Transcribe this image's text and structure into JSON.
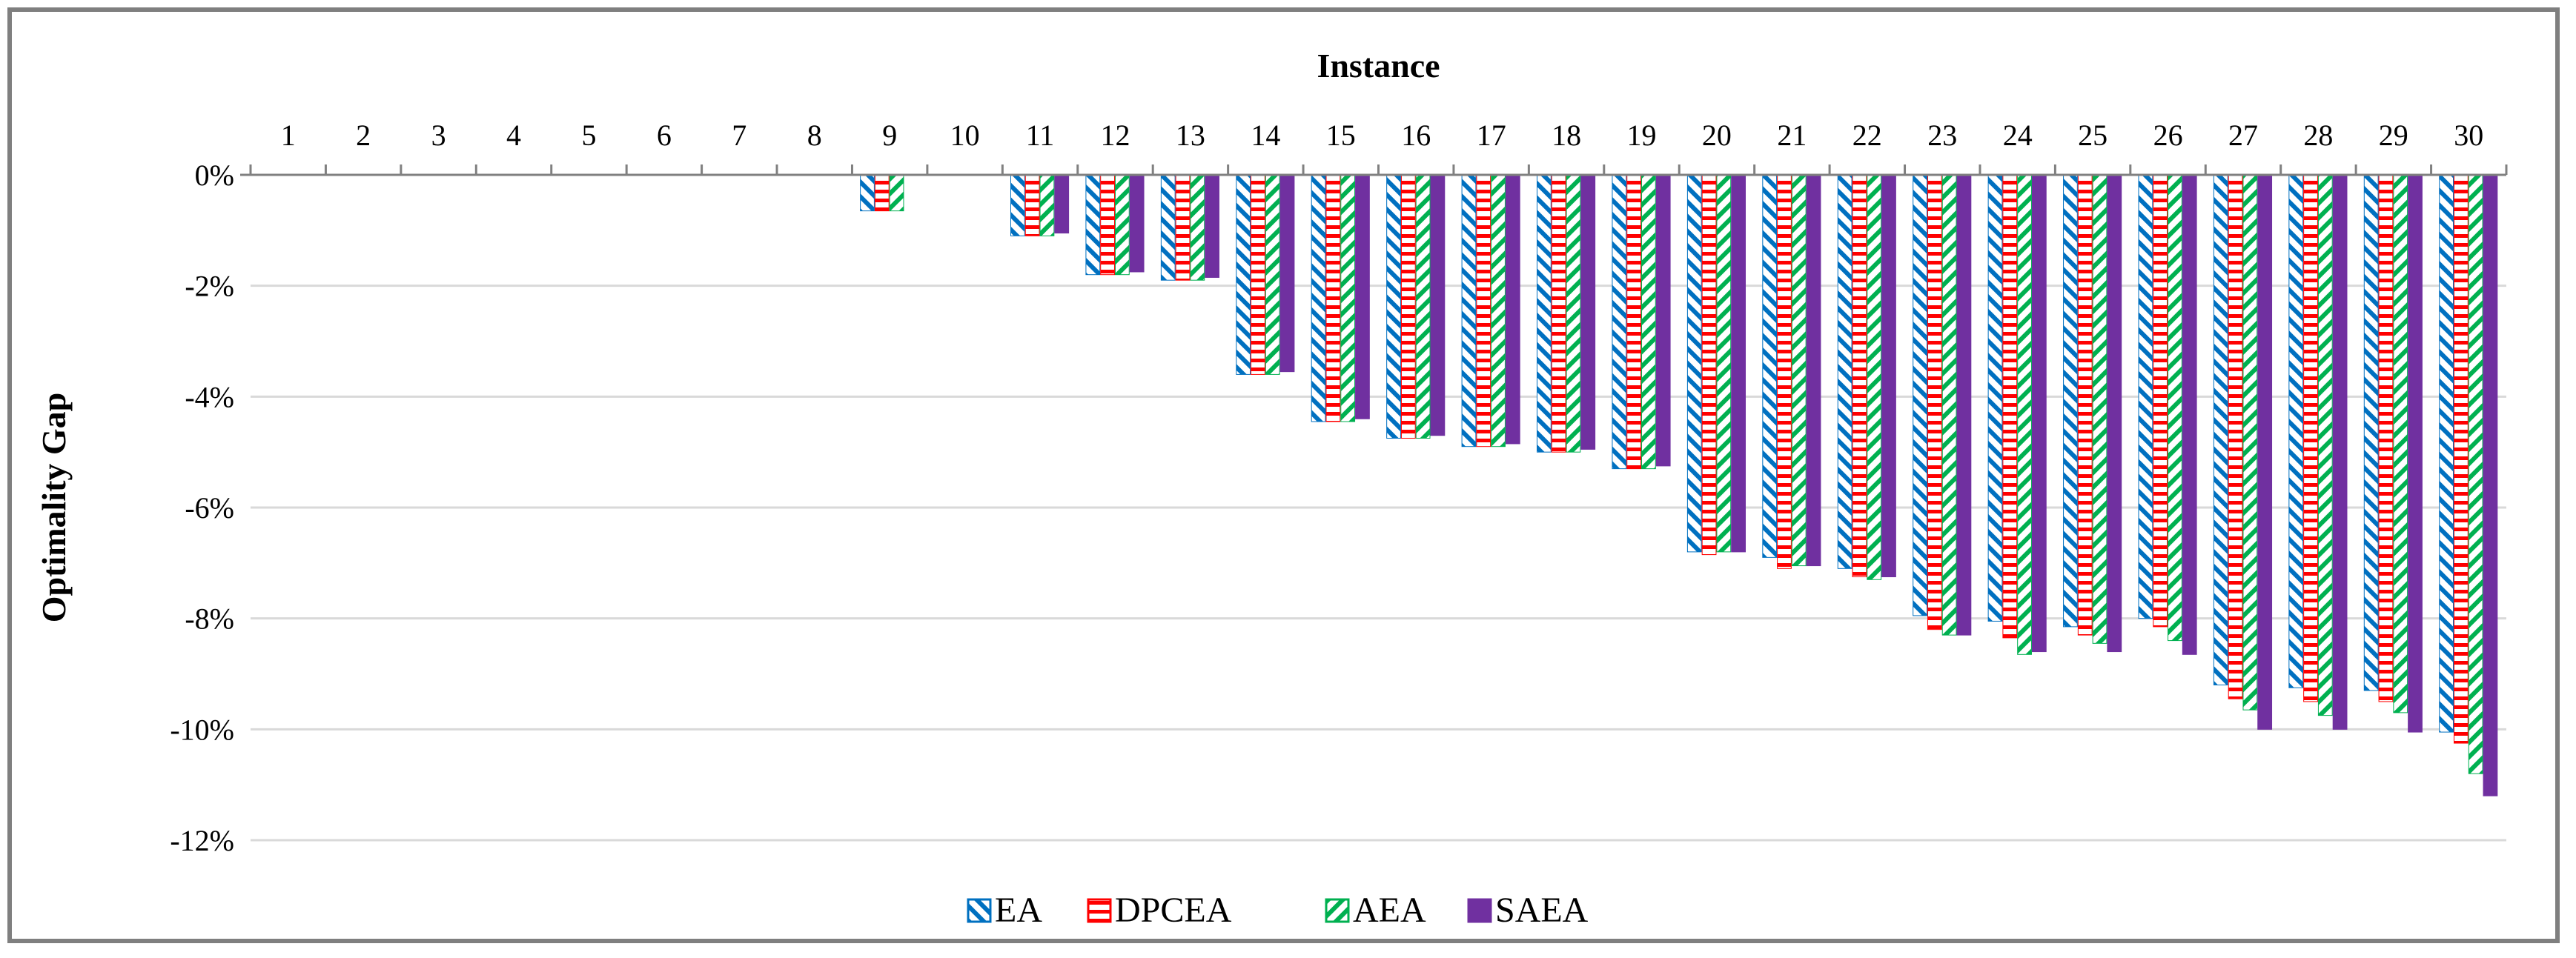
{
  "chart_data": {
    "type": "bar",
    "title": "",
    "xlabel": "Instance",
    "ylabel": "Optimality Gap",
    "x_axis_position": "top",
    "categories": [
      "1",
      "2",
      "3",
      "4",
      "5",
      "6",
      "7",
      "8",
      "9",
      "10",
      "11",
      "12",
      "13",
      "14",
      "15",
      "16",
      "17",
      "18",
      "19",
      "20",
      "21",
      "22",
      "23",
      "24",
      "25",
      "26",
      "27",
      "28",
      "29",
      "30"
    ],
    "ylim": [
      -12,
      0
    ],
    "yticks": [
      0,
      -2,
      -4,
      -6,
      -8,
      -10,
      -12
    ],
    "ytick_labels": [
      "0%",
      "-2%",
      "-4%",
      "-6%",
      "-8%",
      "-10%",
      "-12%"
    ],
    "grid": true,
    "legend_position": "bottom",
    "series": [
      {
        "name": "EA",
        "color": "#0070c0",
        "pattern": "diagonal-hatch",
        "values": [
          0,
          0,
          0,
          0,
          0,
          0,
          0,
          0,
          -0.65,
          0,
          -1.1,
          -1.8,
          -1.9,
          -3.6,
          -4.45,
          -4.75,
          -4.9,
          -5.0,
          -5.3,
          -6.8,
          -6.9,
          -7.1,
          -7.95,
          -8.05,
          -8.15,
          -8.0,
          -9.2,
          -9.25,
          -9.3,
          -10.05
        ]
      },
      {
        "name": "DPCEA",
        "color": "#ff0000",
        "pattern": "horizontal-stripes",
        "values": [
          0,
          0,
          0,
          0,
          0,
          0,
          0,
          0,
          -0.65,
          0,
          -1.1,
          -1.8,
          -1.9,
          -3.6,
          -4.45,
          -4.75,
          -4.9,
          -5.0,
          -5.3,
          -6.85,
          -7.1,
          -7.25,
          -8.2,
          -8.35,
          -8.3,
          -8.15,
          -9.45,
          -9.5,
          -9.5,
          -10.25
        ]
      },
      {
        "name": "AEA",
        "color": "#00b050",
        "pattern": "diagonal-hatch",
        "values": [
          0,
          0,
          0,
          0,
          0,
          0,
          0,
          0,
          -0.65,
          0,
          -1.1,
          -1.8,
          -1.9,
          -3.6,
          -4.45,
          -4.75,
          -4.9,
          -5.0,
          -5.3,
          -6.8,
          -7.05,
          -7.3,
          -8.3,
          -8.65,
          -8.45,
          -8.4,
          -9.65,
          -9.75,
          -9.7,
          -10.8
        ]
      },
      {
        "name": "SAEA",
        "color": "#7030a0",
        "pattern": "solid",
        "values": [
          0,
          0,
          0,
          0,
          0,
          0,
          0,
          0,
          0,
          0,
          -1.05,
          -1.75,
          -1.85,
          -3.55,
          -4.4,
          -4.7,
          -4.85,
          -4.95,
          -5.25,
          -6.8,
          -7.05,
          -7.25,
          -8.3,
          -8.6,
          -8.6,
          -8.65,
          -10.0,
          -10.0,
          -10.05,
          -11.2
        ]
      }
    ]
  }
}
